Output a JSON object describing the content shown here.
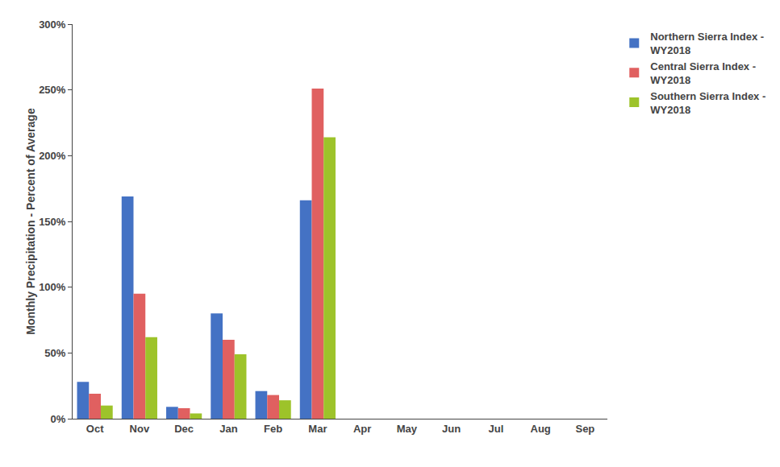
{
  "chart_data": {
    "type": "bar",
    "categories": [
      "Oct",
      "Nov",
      "Dec",
      "Jan",
      "Feb",
      "Mar",
      "Apr",
      "May",
      "Jun",
      "Jul",
      "Aug",
      "Sep"
    ],
    "series": [
      {
        "name": "Northern Sierra Index -\nWY2018",
        "color": "#4472C4",
        "values": [
          28,
          169,
          9,
          80,
          21,
          166,
          0,
          0,
          0,
          0,
          0,
          0
        ]
      },
      {
        "name": "Central Sierra Index -\nWY2018",
        "color": "#E06060",
        "values": [
          19,
          95,
          8,
          60,
          18,
          251,
          0,
          0,
          0,
          0,
          0,
          0
        ]
      },
      {
        "name": "Southern Sierra Index -\nWY2018",
        "color": "#9DC32A",
        "values": [
          10,
          62,
          4,
          49,
          14,
          214,
          0,
          0,
          0,
          0,
          0,
          0
        ]
      }
    ],
    "ylabel": "Monthly Precipitation - Percent of Average",
    "ylim": [
      0,
      300
    ],
    "yticks": [
      {
        "value": 0,
        "label": "0%"
      },
      {
        "value": 50,
        "label": "50%"
      },
      {
        "value": 100,
        "label": "100%"
      },
      {
        "value": 150,
        "label": "150%"
      },
      {
        "value": 200,
        "label": "200%"
      },
      {
        "value": 250,
        "label": "250%"
      },
      {
        "value": 300,
        "label": "300%"
      }
    ],
    "grid": false,
    "legend": "right"
  }
}
